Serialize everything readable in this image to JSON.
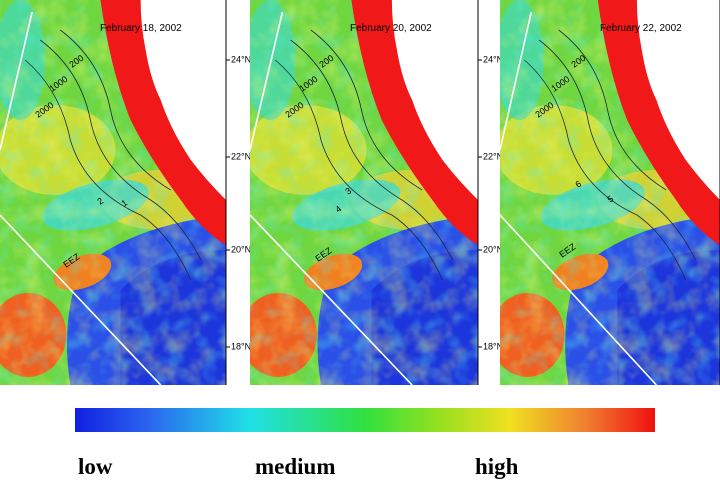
{
  "panels": [
    {
      "date": "February 18, 2002",
      "latitude_labels": [
        "24°N",
        "22°N",
        "20°N",
        "18°N"
      ],
      "annotations": [
        "200",
        "1000",
        "2000",
        "2",
        "1",
        "EEZ"
      ]
    },
    {
      "date": "February 20, 2002",
      "latitude_labels": [
        "24°N",
        "22°N",
        "20°N",
        "18°N"
      ],
      "annotations": [
        "200",
        "1000",
        "2000",
        "3",
        "4",
        "EEZ"
      ]
    },
    {
      "date": "February 22, 2002",
      "annotations": [
        "200",
        "1000",
        "2000",
        "6",
        "5",
        "EEZ"
      ]
    }
  ],
  "legend": {
    "labels": [
      "low",
      "medium",
      "high"
    ]
  }
}
